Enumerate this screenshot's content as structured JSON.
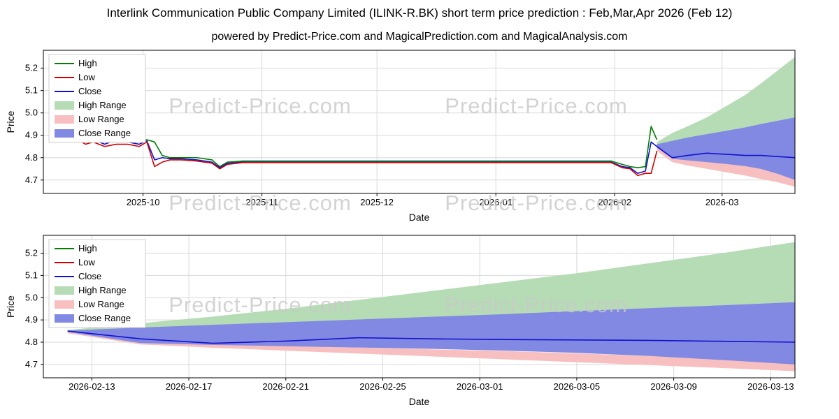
{
  "page": {
    "title": "Interlink Communication Public Company Limited (ILINK-R.BK) short term price prediction : Feb,Mar,Apr 2026 (Feb 12)",
    "subtitle": "powered by Predict-Price.com and MagicalPrediction.com and MagicalAnalysis.com",
    "watermark": "Predict-Price.com"
  },
  "colors": {
    "high_line": "#008000",
    "low_line": "#d10000",
    "close_line": "#1111cc",
    "high_range_fill": "#b5dcb5",
    "low_range_fill": "#f7bfbf",
    "close_range_fill": "#8289e2",
    "grid": "#d9d9d9",
    "axis": "#000000",
    "watermark_gray": "#c9c9c9"
  },
  "legend_items": [
    {
      "label": "High",
      "swatch": "line",
      "color": "#008000"
    },
    {
      "label": "Low",
      "swatch": "line",
      "color": "#d10000"
    },
    {
      "label": "Close",
      "swatch": "line",
      "color": "#1111cc"
    },
    {
      "label": "High Range",
      "swatch": "patch",
      "color": "#b5dcb5"
    },
    {
      "label": "Low Range",
      "swatch": "patch",
      "color": "#f7bfbf"
    },
    {
      "label": "Close Range",
      "swatch": "patch",
      "color": "#8289e2"
    }
  ],
  "chart_data": [
    {
      "type": "line",
      "title": "",
      "xlabel": "Date",
      "ylabel": "Price",
      "x_unit": "days since 2025-09-05",
      "xlim": [
        0,
        196
      ],
      "ylim": [
        4.64,
        5.28
      ],
      "xtick_values": [
        26,
        57,
        87,
        118,
        149,
        177
      ],
      "xtick_labels": [
        "2025-10",
        "2025-11",
        "2025-12",
        "2026-01",
        "2026-02",
        "2026-03"
      ],
      "ytick_values": [
        4.7,
        4.8,
        4.9,
        5.0,
        5.1,
        5.2
      ],
      "ytick_labels": [
        "4.7",
        "4.8",
        "4.9",
        "5.0",
        "5.1",
        "5.2"
      ],
      "grid": true,
      "legend_position": "upper-left",
      "bands": [
        {
          "name": "High Range",
          "color": "#b5dcb5",
          "x": [
            160,
            164,
            168,
            173,
            178,
            183,
            187,
            191.5,
            196
          ],
          "upper": [
            4.87,
            4.91,
            4.94,
            4.98,
            5.03,
            5.08,
            5.13,
            5.19,
            5.25
          ],
          "lower": [
            4.85,
            4.87,
            4.885,
            4.9,
            4.915,
            4.93,
            4.945,
            4.965,
            4.98
          ]
        },
        {
          "name": "Low Range",
          "color": "#f7bfbf",
          "x": [
            160,
            164,
            168,
            173,
            178,
            183,
            187,
            191.5,
            196
          ],
          "upper": [
            4.86,
            4.8,
            4.79,
            4.78,
            4.775,
            4.765,
            4.755,
            4.745,
            4.735
          ],
          "lower": [
            4.83,
            4.78,
            4.765,
            4.75,
            4.735,
            4.72,
            4.705,
            4.69,
            4.67
          ]
        },
        {
          "name": "Close Range",
          "color": "#8289e2",
          "x": [
            160,
            164,
            168,
            173,
            178,
            183,
            187,
            191.5,
            196
          ],
          "upper": [
            4.86,
            4.875,
            4.89,
            4.905,
            4.92,
            4.935,
            4.95,
            4.965,
            4.98
          ],
          "lower": [
            4.845,
            4.795,
            4.788,
            4.78,
            4.772,
            4.762,
            4.75,
            4.728,
            4.7
          ]
        }
      ],
      "series": [
        {
          "name": "High",
          "color": "#008000",
          "x": [
            7,
            9,
            11,
            13,
            16,
            19,
            22,
            25,
            27,
            29,
            31,
            33,
            36,
            40,
            44,
            46,
            48,
            52,
            60,
            75,
            90,
            105,
            120,
            135,
            148,
            151,
            153,
            155,
            157,
            158.5,
            160
          ],
          "y": [
            4.9,
            4.92,
            4.89,
            4.9,
            4.88,
            4.9,
            4.89,
            4.88,
            4.88,
            4.87,
            4.81,
            4.8,
            4.8,
            4.8,
            4.79,
            4.76,
            4.78,
            4.785,
            4.785,
            4.785,
            4.785,
            4.785,
            4.785,
            4.785,
            4.785,
            4.77,
            4.76,
            4.755,
            4.76,
            4.94,
            4.88
          ]
        },
        {
          "name": "Close",
          "color": "#1111cc",
          "x": [
            7,
            9,
            11,
            13,
            16,
            19,
            22,
            25,
            27,
            29,
            31,
            33,
            36,
            40,
            44,
            46,
            48,
            52,
            60,
            75,
            90,
            105,
            120,
            135,
            148,
            151,
            153,
            155,
            157,
            158.5,
            160,
            164,
            168,
            173,
            178,
            183,
            187,
            191.5,
            196
          ],
          "y": [
            4.89,
            4.9,
            4.87,
            4.88,
            4.86,
            4.88,
            4.87,
            4.86,
            4.875,
            4.79,
            4.8,
            4.795,
            4.795,
            4.79,
            4.78,
            4.755,
            4.775,
            4.78,
            4.78,
            4.78,
            4.78,
            4.78,
            4.78,
            4.78,
            4.78,
            4.76,
            4.755,
            4.73,
            4.74,
            4.87,
            4.85,
            4.8,
            4.81,
            4.82,
            4.815,
            4.81,
            4.81,
            4.805,
            4.8
          ]
        },
        {
          "name": "Low",
          "color": "#d10000",
          "x": [
            7,
            9,
            11,
            13,
            16,
            19,
            22,
            25,
            27,
            29,
            31,
            33,
            36,
            40,
            44,
            46,
            48,
            52,
            60,
            75,
            90,
            105,
            120,
            135,
            148,
            151,
            153,
            155,
            157,
            158.5,
            160
          ],
          "y": [
            4.87,
            4.88,
            4.86,
            4.87,
            4.85,
            4.86,
            4.86,
            4.85,
            4.87,
            4.76,
            4.78,
            4.79,
            4.79,
            4.785,
            4.775,
            4.75,
            4.77,
            4.778,
            4.778,
            4.778,
            4.778,
            4.778,
            4.778,
            4.778,
            4.778,
            4.755,
            4.75,
            4.72,
            4.73,
            4.73,
            4.83
          ]
        }
      ]
    },
    {
      "type": "line",
      "title": "",
      "xlabel": "Date",
      "ylabel": "Price",
      "x_unit": "days since 2026-02-11",
      "xlim": [
        0,
        31
      ],
      "ylim": [
        4.64,
        5.28
      ],
      "xtick_values": [
        2,
        6,
        10,
        14,
        18,
        22,
        26,
        30
      ],
      "xtick_labels": [
        "2026-02-13",
        "2026-02-17",
        "2026-02-21",
        "2026-02-25",
        "2026-03-01",
        "2026-03-05",
        "2026-03-09",
        "2026-03-13"
      ],
      "ytick_values": [
        4.7,
        4.8,
        4.9,
        5.0,
        5.1,
        5.2
      ],
      "ytick_labels": [
        "4.7",
        "4.8",
        "4.9",
        "5.0",
        "5.1",
        "5.2"
      ],
      "grid": true,
      "legend_position": "upper-left",
      "bands": [
        {
          "name": "High Range",
          "color": "#b5dcb5",
          "x": [
            1,
            4,
            7,
            10,
            13,
            16,
            19,
            22,
            25,
            28,
            31
          ],
          "upper": [
            4.855,
            4.885,
            4.915,
            4.95,
            4.99,
            5.03,
            5.07,
            5.11,
            5.155,
            5.2,
            5.25
          ],
          "lower": [
            4.845,
            4.855,
            4.868,
            4.882,
            4.896,
            4.91,
            4.924,
            4.938,
            4.952,
            4.966,
            4.98
          ]
        },
        {
          "name": "Low Range",
          "color": "#f7bfbf",
          "x": [
            1,
            4,
            7,
            10,
            13,
            16,
            19,
            22,
            25,
            28,
            31
          ],
          "upper": [
            4.845,
            4.8,
            4.79,
            4.783,
            4.776,
            4.768,
            4.76,
            4.75,
            4.738,
            4.724,
            4.71
          ],
          "lower": [
            4.84,
            4.79,
            4.775,
            4.762,
            4.749,
            4.736,
            4.723,
            4.71,
            4.697,
            4.684,
            4.67
          ]
        },
        {
          "name": "Close Range",
          "color": "#8289e2",
          "x": [
            1,
            4,
            7,
            10,
            13,
            16,
            19,
            22,
            25,
            28,
            31
          ],
          "upper": [
            4.852,
            4.866,
            4.878,
            4.89,
            4.902,
            4.914,
            4.926,
            4.94,
            4.953,
            4.966,
            4.98
          ],
          "lower": [
            4.846,
            4.796,
            4.788,
            4.782,
            4.776,
            4.77,
            4.762,
            4.752,
            4.738,
            4.72,
            4.7
          ]
        }
      ],
      "series": [
        {
          "name": "Close",
          "color": "#1111cc",
          "x": [
            1,
            4,
            7,
            10,
            13,
            16,
            19,
            22,
            25,
            28,
            31
          ],
          "y": [
            4.85,
            4.815,
            4.795,
            4.805,
            4.82,
            4.815,
            4.812,
            4.81,
            4.808,
            4.804,
            4.8
          ]
        }
      ]
    }
  ]
}
